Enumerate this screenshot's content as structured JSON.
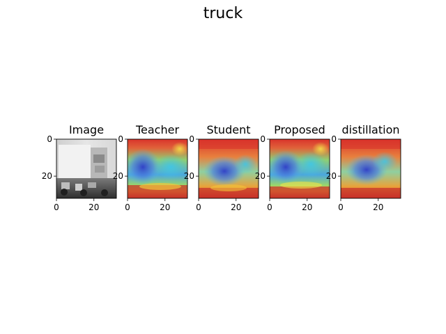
{
  "figure": {
    "suptitle": "truck"
  },
  "chart_data": {
    "type": "heatmap",
    "title": "truck",
    "panels": [
      {
        "title": "Image",
        "kind": "grayscale-image",
        "xticks": [
          0,
          20
        ],
        "yticks": [
          0,
          20
        ],
        "xlim": [
          0,
          32
        ],
        "ylim": [
          32,
          0
        ]
      },
      {
        "title": "Teacher",
        "kind": "heatmap-overlay",
        "xticks": [
          0,
          20
        ],
        "yticks": [
          0,
          20
        ],
        "xlim": [
          0,
          32
        ],
        "ylim": [
          32,
          0
        ]
      },
      {
        "title": "Student",
        "kind": "heatmap-overlay",
        "xticks": [
          0,
          20
        ],
        "yticks": [
          0,
          20
        ],
        "xlim": [
          0,
          32
        ],
        "ylim": [
          32,
          0
        ]
      },
      {
        "title": "Proposed",
        "kind": "heatmap-overlay",
        "xticks": [
          0,
          20
        ],
        "yticks": [
          0,
          20
        ],
        "xlim": [
          0,
          32
        ],
        "ylim": [
          32,
          0
        ]
      },
      {
        "title": "distillation",
        "kind": "heatmap-overlay",
        "xticks": [
          0,
          20
        ],
        "yticks": [
          0,
          20
        ],
        "xlim": [
          0,
          32
        ],
        "ylim": [
          32,
          0
        ]
      }
    ],
    "grid": false,
    "colormap": "jet",
    "colors": {
      "hot": "#d9342b",
      "warm": "#f2b43a",
      "mid": "#9ad56a",
      "cool": "#5ab9e6",
      "cold": "#3c46d2",
      "image_light": "#dcdcdc",
      "image_dark": "#3a3a3a"
    }
  }
}
